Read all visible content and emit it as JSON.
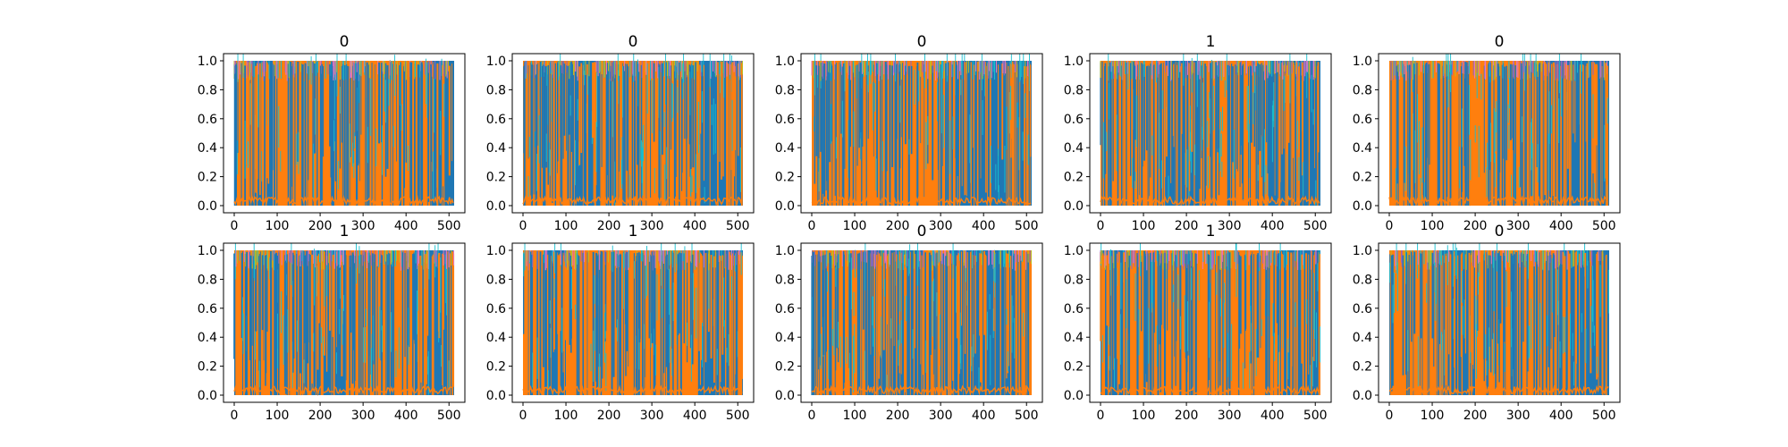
{
  "figure": {
    "colors": {
      "blue": "#1f77b4",
      "orange": "#ff7f0e",
      "cyan": "#17becf",
      "olive": "#bcbd22",
      "pink": "#e377c2",
      "purple": "#9467bd"
    }
  },
  "chart_data": [
    {
      "type": "area",
      "title": "0",
      "xlim": [
        0,
        512
      ],
      "ylim": [
        0,
        1
      ],
      "xticks": [
        "0",
        "100",
        "200",
        "300",
        "400",
        "500"
      ],
      "yticks": [
        "0.0",
        "0.2",
        "0.4",
        "0.6",
        "0.8",
        "1.0"
      ],
      "grid": false,
      "series": [
        {
          "color": "#1f77b4"
        },
        {
          "color": "#ff7f0e"
        },
        {
          "color": "#17becf"
        }
      ],
      "dominant_segments": [
        {
          "x": [
            0,
            30
          ],
          "series": 1
        },
        {
          "x": [
            30,
            90
          ],
          "series": 0
        },
        {
          "x": [
            90,
            460
          ],
          "series": 1
        },
        {
          "x": [
            460,
            512
          ],
          "series": 0
        }
      ]
    },
    {
      "type": "area",
      "title": "0",
      "xlim": [
        0,
        512
      ],
      "ylim": [
        0,
        1
      ],
      "xticks": [
        "0",
        "100",
        "200",
        "300",
        "400",
        "500"
      ],
      "yticks": [
        "0.0",
        "0.2",
        "0.4",
        "0.6",
        "0.8",
        "1.0"
      ],
      "grid": false,
      "series": [
        {
          "color": "#1f77b4"
        },
        {
          "color": "#ff7f0e"
        },
        {
          "color": "#17becf"
        }
      ],
      "dominant_segments": [
        {
          "x": [
            0,
            120
          ],
          "series": 1
        },
        {
          "x": [
            120,
            180
          ],
          "series": 0
        },
        {
          "x": [
            180,
            410
          ],
          "series": 1
        },
        {
          "x": [
            410,
            512
          ],
          "series": 0
        }
      ]
    },
    {
      "type": "area",
      "title": "0",
      "xlim": [
        0,
        512
      ],
      "ylim": [
        0,
        1
      ],
      "xticks": [
        "0",
        "100",
        "200",
        "300",
        "400",
        "500"
      ],
      "yticks": [
        "0.0",
        "0.2",
        "0.4",
        "0.6",
        "0.8",
        "1.0"
      ],
      "grid": false,
      "series": [
        {
          "color": "#1f77b4"
        },
        {
          "color": "#ff7f0e"
        },
        {
          "color": "#17becf"
        }
      ],
      "dominant_segments": [
        {
          "x": [
            0,
            340
          ],
          "series": 1
        },
        {
          "x": [
            340,
            512
          ],
          "series": 0
        }
      ]
    },
    {
      "type": "area",
      "title": "1",
      "xlim": [
        0,
        512
      ],
      "ylim": [
        0,
        1
      ],
      "xticks": [
        "0",
        "100",
        "200",
        "300",
        "400",
        "500"
      ],
      "yticks": [
        "0.0",
        "0.2",
        "0.4",
        "0.6",
        "0.8",
        "1.0"
      ],
      "grid": false,
      "series": [
        {
          "color": "#1f77b4"
        },
        {
          "color": "#ff7f0e"
        },
        {
          "color": "#17becf"
        }
      ],
      "dominant_segments": [
        {
          "x": [
            0,
            150
          ],
          "series": 1
        },
        {
          "x": [
            150,
            230
          ],
          "series": 0
        },
        {
          "x": [
            230,
            390
          ],
          "series": 1
        },
        {
          "x": [
            390,
            512
          ],
          "series": 0
        }
      ]
    },
    {
      "type": "area",
      "title": "0",
      "xlim": [
        0,
        512
      ],
      "ylim": [
        0,
        1
      ],
      "xticks": [
        "0",
        "100",
        "200",
        "300",
        "400",
        "500"
      ],
      "yticks": [
        "0.0",
        "0.2",
        "0.4",
        "0.6",
        "0.8",
        "1.0"
      ],
      "grid": false,
      "series": [
        {
          "color": "#1f77b4"
        },
        {
          "color": "#ff7f0e"
        },
        {
          "color": "#17becf"
        }
      ],
      "dominant_segments": [
        {
          "x": [
            0,
            360
          ],
          "series": 1
        },
        {
          "x": [
            360,
            512
          ],
          "series": 0
        }
      ]
    },
    {
      "type": "area",
      "title": "1",
      "xlim": [
        0,
        512
      ],
      "ylim": [
        0,
        1
      ],
      "xticks": [
        "0",
        "100",
        "200",
        "300",
        "400",
        "500"
      ],
      "yticks": [
        "0.0",
        "0.2",
        "0.4",
        "0.6",
        "0.8",
        "1.0"
      ],
      "grid": false,
      "series": [
        {
          "color": "#1f77b4"
        },
        {
          "color": "#ff7f0e"
        },
        {
          "color": "#17becf"
        }
      ],
      "dominant_segments": [
        {
          "x": [
            0,
            180
          ],
          "series": 1
        },
        {
          "x": [
            180,
            260
          ],
          "series": 0
        },
        {
          "x": [
            260,
            420
          ],
          "series": 1
        },
        {
          "x": [
            420,
            512
          ],
          "series": 0
        }
      ]
    },
    {
      "type": "area",
      "title": "1",
      "xlim": [
        0,
        512
      ],
      "ylim": [
        0,
        1
      ],
      "xticks": [
        "0",
        "100",
        "200",
        "300",
        "400",
        "500"
      ],
      "yticks": [
        "0.0",
        "0.2",
        "0.4",
        "0.6",
        "0.8",
        "1.0"
      ],
      "grid": false,
      "series": [
        {
          "color": "#1f77b4"
        },
        {
          "color": "#ff7f0e"
        },
        {
          "color": "#17becf"
        }
      ],
      "dominant_segments": [
        {
          "x": [
            0,
            50
          ],
          "series": 1
        },
        {
          "x": [
            50,
            100
          ],
          "series": 0
        },
        {
          "x": [
            100,
            410
          ],
          "series": 1
        },
        {
          "x": [
            410,
            512
          ],
          "series": 0
        }
      ]
    },
    {
      "type": "area",
      "title": "0",
      "xlim": [
        0,
        512
      ],
      "ylim": [
        0,
        1
      ],
      "xticks": [
        "0",
        "100",
        "200",
        "300",
        "400",
        "500"
      ],
      "yticks": [
        "0.0",
        "0.2",
        "0.4",
        "0.6",
        "0.8",
        "1.0"
      ],
      "grid": false,
      "series": [
        {
          "color": "#1f77b4"
        },
        {
          "color": "#ff7f0e"
        },
        {
          "color": "#17becf"
        }
      ],
      "dominant_segments": [
        {
          "x": [
            0,
            130
          ],
          "series": 1
        },
        {
          "x": [
            130,
            260
          ],
          "series": 0
        },
        {
          "x": [
            260,
            320
          ],
          "series": 1
        },
        {
          "x": [
            320,
            470
          ],
          "series": 0
        },
        {
          "x": [
            470,
            512
          ],
          "series": 1
        }
      ]
    },
    {
      "type": "area",
      "title": "1",
      "xlim": [
        0,
        512
      ],
      "ylim": [
        0,
        1
      ],
      "xticks": [
        "0",
        "100",
        "200",
        "300",
        "400",
        "500"
      ],
      "yticks": [
        "0.0",
        "0.2",
        "0.4",
        "0.6",
        "0.8",
        "1.0"
      ],
      "grid": false,
      "series": [
        {
          "color": "#1f77b4"
        },
        {
          "color": "#ff7f0e"
        },
        {
          "color": "#17becf"
        }
      ],
      "dominant_segments": [
        {
          "x": [
            0,
            60
          ],
          "series": 0
        },
        {
          "x": [
            60,
            420
          ],
          "series": 1
        },
        {
          "x": [
            420,
            512
          ],
          "series": 0
        }
      ]
    },
    {
      "type": "area",
      "title": "0",
      "xlim": [
        0,
        512
      ],
      "ylim": [
        0,
        1
      ],
      "xticks": [
        "0",
        "100",
        "200",
        "300",
        "400",
        "500"
      ],
      "yticks": [
        "0.0",
        "0.2",
        "0.4",
        "0.6",
        "0.8",
        "1.0"
      ],
      "grid": false,
      "series": [
        {
          "color": "#1f77b4"
        },
        {
          "color": "#ff7f0e"
        },
        {
          "color": "#17becf"
        }
      ],
      "dominant_segments": [
        {
          "x": [
            0,
            120
          ],
          "series": 1
        },
        {
          "x": [
            120,
            200
          ],
          "series": 0
        },
        {
          "x": [
            200,
            390
          ],
          "series": 1
        },
        {
          "x": [
            390,
            512
          ],
          "series": 0
        }
      ]
    }
  ]
}
